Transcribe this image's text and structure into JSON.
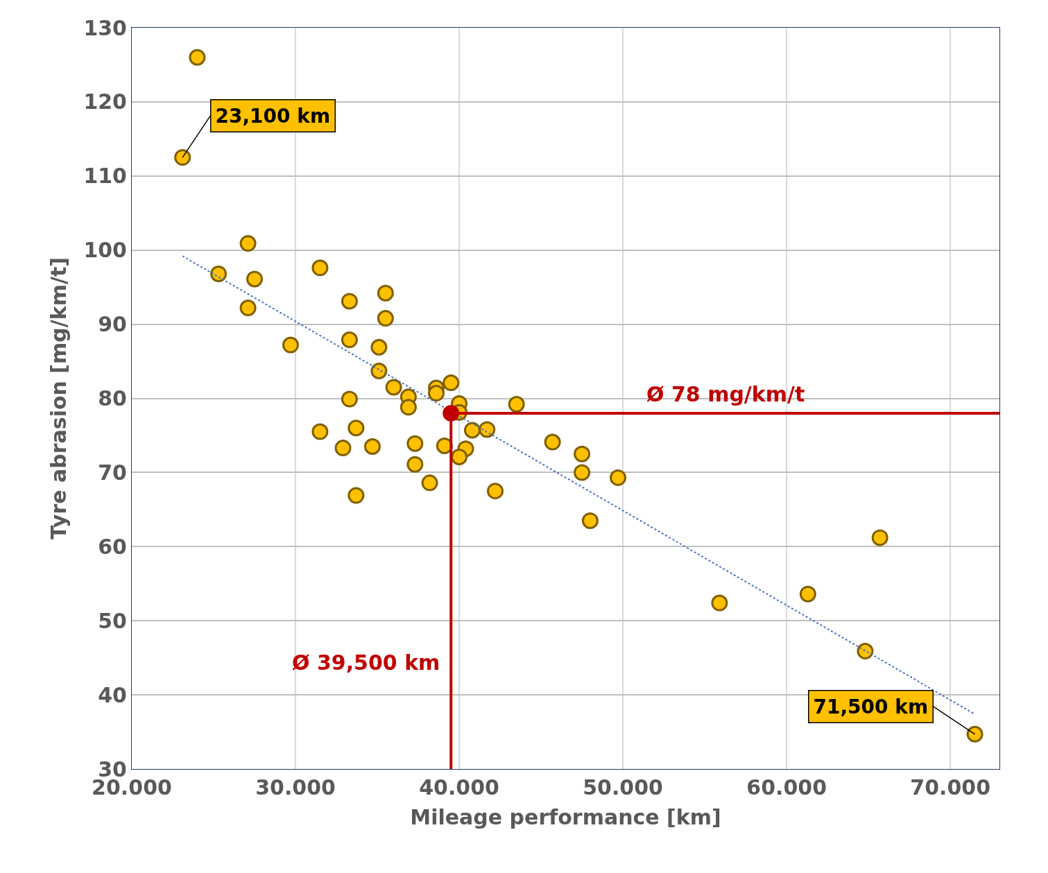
{
  "chart_data": {
    "type": "scatter",
    "xlabel": "Mileage performance [km]",
    "ylabel": "Tyre abrasion [mg/km/t]",
    "xlim": [
      20000,
      73000
    ],
    "xticks": [
      {
        "value": 20000,
        "label": "20.000"
      },
      {
        "value": 30000,
        "label": "30.000"
      },
      {
        "value": 40000,
        "label": "40.000"
      },
      {
        "value": 50000,
        "label": "50.000"
      },
      {
        "value": 60000,
        "label": "60.000"
      },
      {
        "value": 70000,
        "label": "70.000"
      }
    ],
    "ylim": [
      30,
      130
    ],
    "yticks": [
      30,
      40,
      50,
      60,
      70,
      80,
      90,
      100,
      110,
      120,
      130
    ],
    "grid": true,
    "marker": "circle",
    "series": [
      {
        "color": "#ffc000",
        "x": [
          24000,
          23100,
          27100,
          25300,
          27500,
          27100,
          29700,
          31500,
          33300,
          33300,
          35500,
          35500,
          35100,
          35100,
          36000,
          33300,
          31500,
          32900,
          33700,
          34700,
          33700,
          36900,
          36900,
          37300,
          37300,
          38200,
          38600,
          38600,
          39500,
          40000,
          40000,
          39100,
          40400,
          40000,
          40800,
          41700,
          43500,
          42200,
          45700,
          47500,
          47500,
          49700,
          48000,
          55900,
          61300,
          65700,
          64800,
          71500
        ],
        "values": [
          126.0,
          112.5,
          100.9,
          96.8,
          96.1,
          92.2,
          87.2,
          97.6,
          93.1,
          87.9,
          94.2,
          90.8,
          86.9,
          83.7,
          81.5,
          79.9,
          75.5,
          73.3,
          76.0,
          73.5,
          66.9,
          80.2,
          78.8,
          73.9,
          71.1,
          68.6,
          81.4,
          80.7,
          82.1,
          79.3,
          78.1,
          73.6,
          73.2,
          72.1,
          75.7,
          75.8,
          79.2,
          67.5,
          74.1,
          72.5,
          70.0,
          69.3,
          63.5,
          52.4,
          53.6,
          61.2,
          45.9,
          34.7
        ]
      },
      {
        "type": "line",
        "color": "#4472c4",
        "line_style": "dotted",
        "marker": "none",
        "x": [
          23100,
          71500
        ],
        "values": [
          99.2,
          37.4
        ]
      },
      {
        "color": "#c00000",
        "x": [
          39500
        ],
        "values": [
          78
        ]
      }
    ],
    "ref_lines": [
      {
        "axis": "x",
        "value": 39500,
        "label": "Ø 39,500 km",
        "color": "#c00000"
      },
      {
        "axis": "y",
        "value": 78,
        "label": "Ø 78 mg/km/t",
        "color": "#c00000"
      }
    ],
    "annotations": [
      {
        "text": "23,100 km",
        "x": 23100,
        "y": 112.5
      },
      {
        "text": "71,500 km",
        "x": 71500,
        "y": 34.7
      }
    ]
  }
}
